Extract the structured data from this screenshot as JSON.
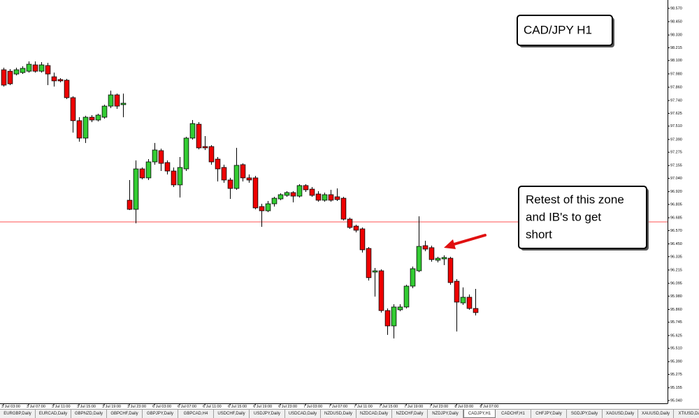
{
  "chart_data": {
    "type": "candlestick",
    "title": "CAD/JPY H1",
    "annotation": [
      "Retest of this zone",
      "and IB's to get",
      "short"
    ],
    "up_color": "#33cc33",
    "down_color": "#ee0000",
    "outline_color": "#000000",
    "open": [
      98.017,
      98.004,
      97.979,
      97.992,
      98.004,
      98.061,
      98.004,
      98.055,
      97.954,
      97.929,
      97.923,
      97.766,
      97.559,
      97.402,
      97.59,
      97.565,
      97.59,
      97.69,
      97.791,
      97.703,
      96.843,
      96.761,
      97.125,
      97.044,
      97.188,
      97.289,
      97.182,
      97.106,
      96.981,
      97.125,
      97.402,
      97.527,
      97.326,
      97.326,
      97.213,
      97.138,
      97.025,
      96.949,
      97.163,
      97.044,
      97.044,
      96.786,
      96.748,
      96.811,
      96.855,
      96.887,
      96.912,
      96.88,
      96.975,
      96.943,
      96.899,
      96.843,
      96.893,
      96.874,
      96.861,
      96.673,
      96.61,
      96.585,
      96.409,
      96.196,
      96.208,
      95.85,
      95.712,
      95.857,
      95.882,
      96.07,
      96.208,
      96.434,
      96.416,
      96.303,
      96.315,
      96.321,
      96.114,
      95.919,
      95.97,
      95.869
    ],
    "high": [
      98.036,
      98.023,
      98.036,
      98.048,
      98.092,
      98.092,
      98.086,
      98.08,
      97.992,
      97.942,
      97.935,
      97.778,
      97.59,
      97.603,
      97.609,
      97.621,
      97.703,
      97.829,
      97.803,
      97.803,
      97.025,
      97.201,
      97.138,
      97.213,
      97.358,
      97.307,
      97.201,
      97.138,
      97.232,
      97.414,
      97.565,
      97.546,
      97.42,
      97.339,
      97.232,
      97.163,
      97.044,
      97.314,
      97.175,
      97.075,
      97.062,
      96.811,
      96.836,
      96.874,
      96.905,
      96.924,
      96.924,
      96.987,
      96.987,
      96.962,
      96.924,
      96.912,
      96.937,
      96.949,
      96.874,
      96.686,
      96.623,
      96.598,
      96.422,
      96.233,
      96.221,
      95.869,
      95.907,
      95.907,
      96.083,
      96.246,
      96.698,
      96.478,
      96.434,
      96.334,
      96.347,
      96.334,
      96.133,
      96.058,
      95.995,
      96.045
    ],
    "low": [
      97.866,
      97.879,
      97.967,
      97.979,
      97.992,
      97.992,
      97.992,
      97.879,
      97.866,
      97.904,
      97.753,
      97.452,
      97.37,
      97.358,
      97.546,
      97.552,
      97.577,
      97.672,
      97.665,
      97.59,
      96.755,
      96.635,
      97.031,
      97.025,
      97.163,
      97.106,
      97.075,
      96.962,
      96.868,
      97.106,
      97.389,
      97.301,
      97.295,
      97.163,
      97.012,
      97.0,
      96.855,
      96.937,
      97.012,
      97.0,
      96.761,
      96.604,
      96.736,
      96.786,
      96.843,
      96.874,
      96.824,
      96.868,
      96.918,
      96.874,
      96.83,
      96.83,
      96.83,
      96.836,
      96.661,
      96.585,
      96.554,
      96.372,
      96.12,
      95.976,
      95.832,
      95.631,
      95.599,
      95.844,
      95.869,
      96.051,
      96.196,
      96.384,
      96.29,
      96.284,
      96.259,
      96.083,
      95.662,
      95.901,
      95.857,
      95.806
    ],
    "close": [
      97.879,
      97.891,
      98.017,
      98.03,
      98.067,
      98.004,
      98.061,
      97.979,
      97.917,
      97.917,
      97.766,
      97.559,
      97.402,
      97.59,
      97.565,
      97.609,
      97.69,
      97.791,
      97.69,
      97.716,
      96.761,
      97.125,
      97.044,
      97.188,
      97.295,
      97.175,
      97.106,
      96.981,
      97.138,
      97.402,
      97.533,
      97.314,
      97.314,
      97.188,
      97.125,
      97.025,
      96.949,
      97.157,
      97.044,
      97.025,
      96.774,
      96.748,
      96.811,
      96.861,
      96.893,
      96.912,
      96.88,
      96.975,
      96.937,
      96.887,
      96.843,
      96.893,
      96.843,
      96.849,
      96.673,
      96.598,
      96.573,
      96.397,
      96.146,
      96.208,
      95.85,
      95.712,
      95.882,
      95.882,
      96.07,
      96.227,
      96.428,
      96.403,
      96.309,
      96.321,
      96.328,
      96.102,
      95.926,
      95.97,
      95.869,
      95.832
    ],
    "hline": {
      "value": 96.648,
      "color": "#ff5050"
    },
    "xlim": [
      -0.556,
      105.5
    ],
    "xticks": [
      {
        "value": 0,
        "label": "3 Jul 03:00"
      },
      {
        "value": 4,
        "label": "3 Jul 07:00"
      },
      {
        "value": 8,
        "label": "3 Jul 11:00"
      },
      {
        "value": 12,
        "label": "3 Jul 15:00"
      },
      {
        "value": 16,
        "label": "3 Jul 19:00"
      },
      {
        "value": 20,
        "label": "3 Jul 23:00"
      },
      {
        "value": 24,
        "label": "6 Jul 03:00"
      },
      {
        "value": 28,
        "label": "6 Jul 07:00"
      },
      {
        "value": 32,
        "label": "6 Jul 11:00"
      },
      {
        "value": 36,
        "label": "6 Jul 15:00"
      },
      {
        "value": 40,
        "label": "6 Jul 19:00"
      },
      {
        "value": 44,
        "label": "6 Jul 23:00"
      },
      {
        "value": 48,
        "label": "7 Jul 03:00"
      },
      {
        "value": 52,
        "label": "7 Jul 07:00"
      },
      {
        "value": 56,
        "label": "7 Jul 11:00"
      },
      {
        "value": 60,
        "label": "7 Jul 15:00"
      },
      {
        "value": 64,
        "label": "7 Jul 19:00"
      },
      {
        "value": 68,
        "label": "7 Jul 23:00"
      },
      {
        "value": 72,
        "label": "8 Jul 03:00"
      },
      {
        "value": 76,
        "label": "8 Jul 07:00"
      }
    ],
    "ylim": [
      95.015,
      98.645
    ],
    "yticks": [
      {
        "value": 98.57,
        "label": "98.570"
      },
      {
        "value": 98.45,
        "label": "98.450"
      },
      {
        "value": 98.33,
        "label": "98.330"
      },
      98.215,
      {
        "value": 98.1,
        "label": "98.100"
      },
      {
        "value": 97.98,
        "label": "97.980"
      },
      {
        "value": 97.86,
        "label": "97.860"
      },
      {
        "value": 97.74,
        "label": "97.740"
      },
      97.625,
      {
        "value": 97.51,
        "label": "97.510"
      },
      {
        "value": 97.39,
        "label": "97.390"
      },
      97.275,
      97.155,
      {
        "value": 97.04,
        "label": "97.040"
      },
      {
        "value": 96.92,
        "label": "96.920"
      },
      96.805,
      96.685,
      {
        "value": 96.57,
        "label": "96.570"
      },
      {
        "value": 96.45,
        "label": "96.450"
      },
      96.335,
      96.215,
      96.095,
      {
        "value": 95.98,
        "label": "95.980"
      },
      {
        "value": 95.86,
        "label": "95.860"
      },
      95.745,
      95.625,
      {
        "value": 95.51,
        "label": "95.510"
      },
      {
        "value": 95.39,
        "label": "95.390"
      },
      95.275,
      95.155,
      {
        "value": 95.04,
        "label": "95.040"
      }
    ],
    "grid": false
  },
  "tabs": [
    "EURGBP,Daily",
    "EURCAD,Daily",
    "GBPNZD,Daily",
    "GBPCHF,Daily",
    "GBPJPY,Daily",
    "GBPCAD,H4",
    "USDCHF,Daily",
    "USDJPY,Daily",
    "USDCAD,Daily",
    "NZDUSD,Daily",
    "NZDCAD,Daily",
    "NZDCHF,Daily",
    "NZDJPY,Daily",
    "CADJPY,H1",
    "CADCHF,H1",
    "CHFJPY,Daily",
    "SGDJPY,Daily",
    "XAGUSD,Daily",
    "XAUUSD,Daily",
    "XTIUSD,Daily"
  ],
  "active_tab": 13
}
